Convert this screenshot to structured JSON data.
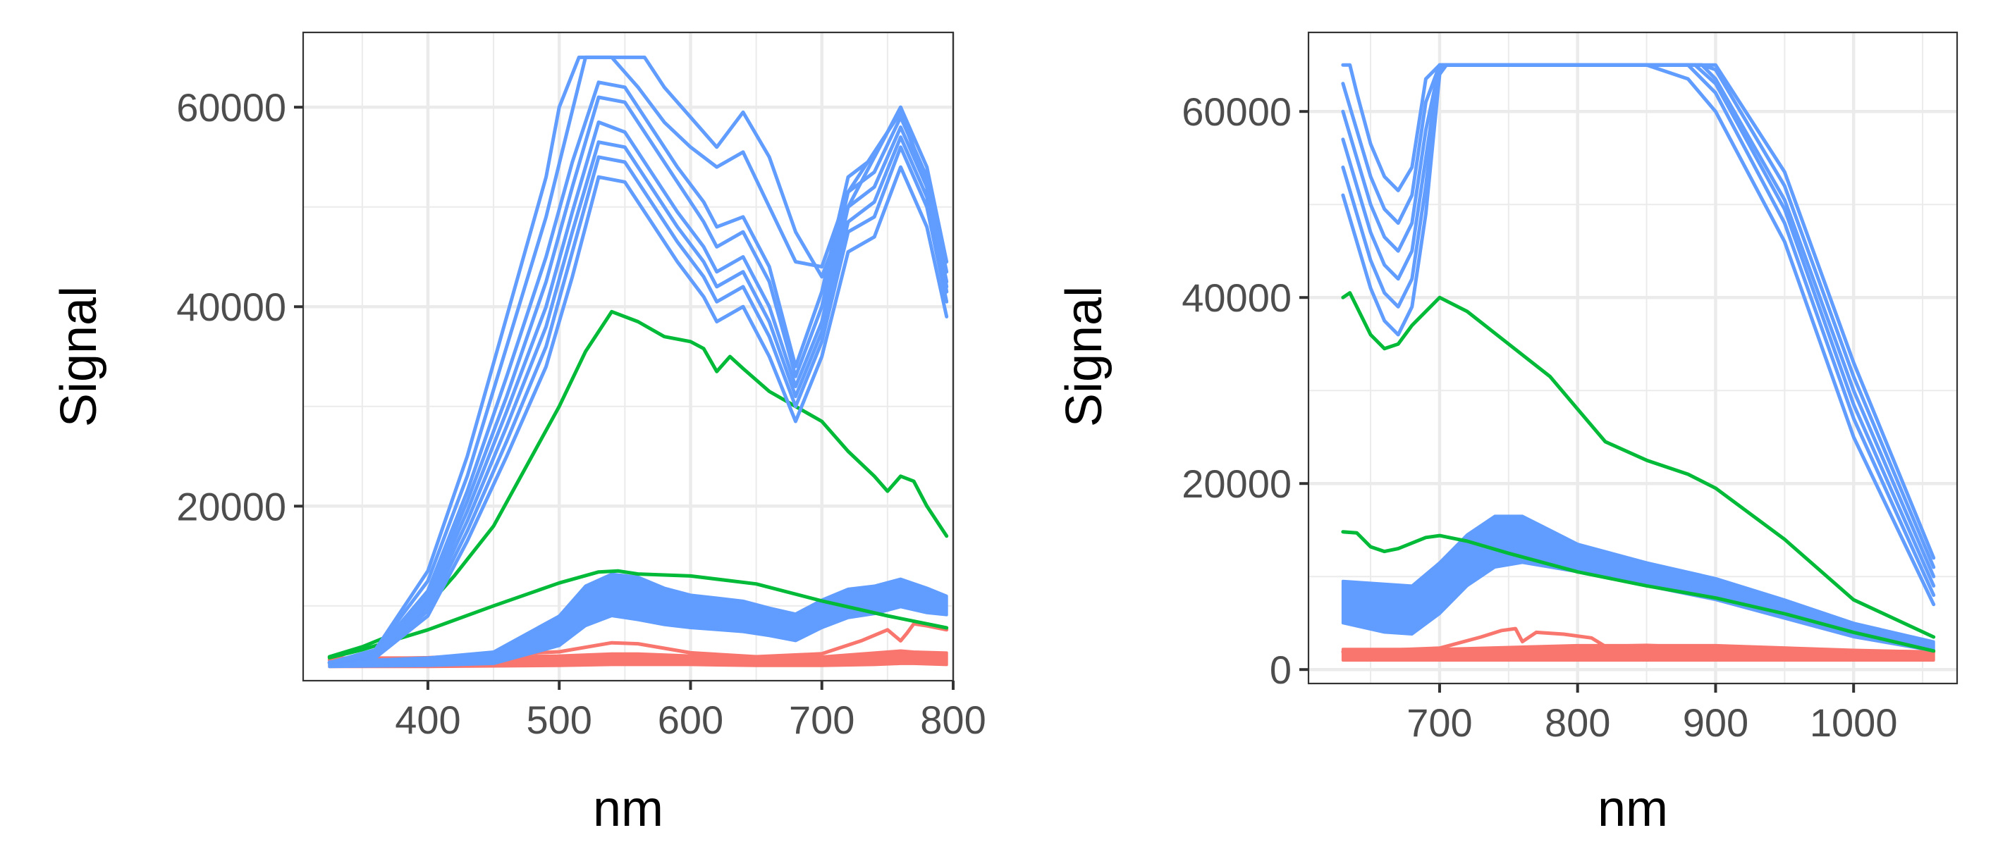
{
  "colors": {
    "red": "#F8766D",
    "green": "#00BA38",
    "blue": "#619CFF",
    "grid": "#EBEBEB",
    "panel_border": "#333333",
    "tick_text": "#4D4D4D"
  },
  "chart_data": [
    {
      "type": "line",
      "xlabel": "nm",
      "ylabel": "Signal",
      "xlim": [
        305,
        800
      ],
      "ylim": [
        2500,
        67500
      ],
      "xticks": [
        400,
        500,
        600,
        700,
        800
      ],
      "yticks": [
        20000,
        40000,
        60000
      ],
      "grid": true,
      "legend": "none",
      "series": [
        {
          "color": "#F8766D",
          "kind": "band",
          "x": [
            325,
            400,
            500,
            540,
            560,
            600,
            650,
            700,
            740,
            760,
            770,
            795
          ],
          "lower": [
            3900,
            3900,
            4000,
            4100,
            4100,
            4100,
            4000,
            4000,
            4100,
            4200,
            4200,
            4100
          ],
          "upper": [
            4800,
            4800,
            5000,
            5200,
            5200,
            5000,
            4900,
            4900,
            5300,
            5500,
            5400,
            5300
          ]
        },
        {
          "color": "#F8766D",
          "x": [
            325,
            400,
            500,
            540,
            560,
            600,
            650,
            700,
            730,
            750,
            760,
            765,
            770,
            780,
            795
          ],
          "y": [
            4600,
            4800,
            5400,
            6300,
            6200,
            5300,
            4900,
            5200,
            6500,
            7600,
            6500,
            7300,
            8200,
            8000,
            7600
          ]
        },
        {
          "color": "#619CFF",
          "kind": "band",
          "x": [
            325,
            400,
            450,
            500,
            520,
            540,
            560,
            580,
            600,
            620,
            640,
            660,
            680,
            700,
            720,
            740,
            760,
            780,
            795
          ],
          "lower": [
            3900,
            4000,
            4200,
            6000,
            8000,
            9000,
            8600,
            8100,
            7800,
            7600,
            7400,
            7000,
            6500,
            7800,
            8800,
            9200,
            9900,
            9300,
            9100
          ],
          "upper": [
            4400,
            4800,
            5400,
            9000,
            12000,
            13200,
            12900,
            11800,
            11100,
            10800,
            10500,
            9800,
            9200,
            10600,
            11700,
            12000,
            12700,
            11800,
            11000
          ]
        },
        {
          "color": "#00BA38",
          "x": [
            325,
            350,
            400,
            450,
            500,
            530,
            545,
            560,
            600,
            650,
            700,
            750,
            795
          ],
          "y": [
            4800,
            5600,
            7600,
            10000,
            12300,
            13400,
            13500,
            13200,
            13000,
            12200,
            10500,
            9000,
            7800
          ]
        },
        {
          "color": "#00BA38",
          "x": [
            325,
            350,
            380,
            400,
            420,
            450,
            500,
            520,
            540,
            560,
            580,
            600,
            610,
            620,
            630,
            640,
            660,
            680,
            700,
            720,
            740,
            750,
            760,
            770,
            780,
            795
          ],
          "y": [
            4900,
            5900,
            7500,
            10000,
            13000,
            18000,
            30000,
            35500,
            39500,
            38500,
            37000,
            36500,
            35800,
            33500,
            35000,
            33800,
            31500,
            30000,
            28500,
            25500,
            23000,
            21500,
            23000,
            22500,
            20000,
            17000
          ]
        },
        {
          "color": "#619CFF",
          "x": [
            325,
            360,
            400,
            430,
            460,
            490,
            510,
            530,
            550,
            570,
            590,
            610,
            620,
            640,
            660,
            680,
            700,
            720,
            740,
            760,
            780,
            795
          ],
          "y": [
            4300,
            4800,
            9000,
            16500,
            25000,
            34000,
            43000,
            53000,
            52500,
            48500,
            44500,
            41000,
            38500,
            40000,
            35000,
            28500,
            35000,
            45500,
            47000,
            54000,
            48000,
            39000
          ]
        },
        {
          "color": "#619CFF",
          "x": [
            325,
            360,
            400,
            430,
            460,
            490,
            510,
            530,
            550,
            570,
            590,
            610,
            620,
            640,
            660,
            680,
            700,
            720,
            740,
            760,
            780,
            795
          ],
          "y": [
            4300,
            4900,
            9500,
            17500,
            26500,
            36000,
            45500,
            55000,
            54500,
            50500,
            46500,
            43000,
            40500,
            42000,
            37000,
            30000,
            36500,
            47500,
            49000,
            56000,
            50000,
            40500
          ]
        },
        {
          "color": "#619CFF",
          "x": [
            325,
            360,
            400,
            430,
            460,
            490,
            510,
            530,
            550,
            570,
            590,
            610,
            620,
            640,
            660,
            680,
            700,
            720,
            740,
            760,
            780,
            795
          ],
          "y": [
            4300,
            5000,
            10000,
            18500,
            28000,
            38000,
            47500,
            56500,
            56000,
            52000,
            48000,
            44500,
            42000,
            43500,
            38500,
            31000,
            37500,
            48500,
            50500,
            57000,
            51000,
            41500
          ]
        },
        {
          "color": "#619CFF",
          "x": [
            325,
            360,
            400,
            430,
            460,
            490,
            510,
            530,
            550,
            570,
            590,
            610,
            620,
            640,
            660,
            680,
            700,
            720,
            740,
            760,
            780,
            795
          ],
          "y": [
            4300,
            5100,
            10500,
            19500,
            29500,
            40000,
            49500,
            58500,
            57500,
            53500,
            49500,
            46000,
            43500,
            45000,
            40000,
            32000,
            38500,
            50000,
            52000,
            58000,
            52000,
            42500
          ]
        },
        {
          "color": "#619CFF",
          "x": [
            325,
            360,
            400,
            430,
            460,
            490,
            510,
            530,
            550,
            570,
            590,
            610,
            620,
            640,
            660,
            680,
            700,
            720,
            740,
            760,
            780,
            795
          ],
          "y": [
            4300,
            5200,
            11000,
            20500,
            31000,
            42500,
            52000,
            61000,
            60500,
            56500,
            52500,
            48500,
            46000,
            47500,
            42500,
            33000,
            40000,
            51500,
            53500,
            59000,
            53000,
            43500
          ]
        },
        {
          "color": "#619CFF",
          "x": [
            325,
            360,
            400,
            430,
            460,
            490,
            510,
            530,
            550,
            570,
            590,
            610,
            620,
            640,
            660,
            680,
            700,
            720,
            740,
            760,
            780,
            795
          ],
          "y": [
            4300,
            5300,
            11500,
            21500,
            33000,
            45000,
            54500,
            62500,
            62000,
            58000,
            54000,
            50500,
            48000,
            49000,
            44000,
            34000,
            41500,
            53000,
            55000,
            60000,
            54000,
            44500
          ]
        },
        {
          "color": "#619CFF",
          "x": [
            325,
            360,
            400,
            430,
            460,
            490,
            505,
            520,
            540,
            560,
            580,
            600,
            620,
            640,
            660,
            680,
            700,
            720,
            740,
            760,
            780,
            795
          ],
          "y": [
            4300,
            5500,
            12500,
            23000,
            36000,
            49000,
            57000,
            65000,
            65000,
            62000,
            58500,
            56000,
            54000,
            55500,
            50000,
            44500,
            44000,
            51500,
            55500,
            59500,
            52000,
            41500
          ]
        },
        {
          "color": "#619CFF",
          "x": [
            325,
            360,
            400,
            430,
            460,
            490,
            500,
            515,
            545,
            565,
            580,
            600,
            620,
            640,
            660,
            680,
            700,
            720,
            740,
            760,
            780,
            795
          ],
          "y": [
            4300,
            5600,
            13500,
            25000,
            39000,
            53000,
            60000,
            65000,
            65000,
            65000,
            62000,
            59000,
            56000,
            59500,
            55000,
            47500,
            43000,
            50000,
            55000,
            60000,
            52000,
            42000
          ]
        }
      ]
    },
    {
      "type": "line",
      "xlabel": "nm",
      "ylabel": "Signal",
      "xlim": [
        605,
        1075
      ],
      "ylim": [
        -1500,
        68500
      ],
      "xticks": [
        700,
        800,
        900,
        1000
      ],
      "yticks": [
        0,
        20000,
        40000,
        60000
      ],
      "grid": true,
      "legend": "none",
      "series": [
        {
          "color": "#F8766D",
          "kind": "band",
          "x": [
            630,
            700,
            800,
            900,
            1000,
            1058
          ],
          "lower": [
            1000,
            1000,
            1000,
            1000,
            1000,
            1000
          ],
          "upper": [
            2200,
            2200,
            2600,
            2600,
            2100,
            1900
          ]
        },
        {
          "color": "#F8766D",
          "x": [
            630,
            700,
            730,
            745,
            755,
            760,
            770,
            790,
            810,
            820,
            850,
            900,
            1000,
            1058
          ],
          "y": [
            1900,
            2300,
            3500,
            4200,
            4400,
            3000,
            4000,
            3800,
            3400,
            2500,
            2600,
            2300,
            2000,
            1900
          ]
        },
        {
          "color": "#619CFF",
          "kind": "band",
          "x": [
            630,
            660,
            680,
            700,
            720,
            740,
            760,
            780,
            800,
            850,
            900,
            950,
            1000,
            1058
          ],
          "lower": [
            5000,
            4000,
            3800,
            6000,
            9000,
            11000,
            11500,
            11000,
            10500,
            9000,
            7500,
            5500,
            3500,
            2000
          ],
          "upper": [
            9500,
            9200,
            9000,
            11500,
            14500,
            16500,
            16500,
            15000,
            13500,
            11500,
            9800,
            7500,
            5000,
            3000
          ]
        },
        {
          "color": "#00BA38",
          "x": [
            630,
            635,
            640,
            650,
            660,
            670,
            680,
            700,
            720,
            750,
            780,
            800,
            820,
            850,
            880,
            900,
            950,
            1000,
            1058
          ],
          "y": [
            40000,
            40500,
            39000,
            36000,
            34500,
            35000,
            37000,
            40000,
            38500,
            35000,
            31500,
            28000,
            24500,
            22500,
            21000,
            19500,
            14000,
            7500,
            3500
          ]
        },
        {
          "color": "#00BA38",
          "x": [
            630,
            640,
            650,
            660,
            670,
            690,
            700,
            720,
            750,
            800,
            850,
            900,
            950,
            1000,
            1058
          ],
          "y": [
            14800,
            14700,
            13200,
            12700,
            13000,
            14200,
            14400,
            13800,
            12500,
            10500,
            9000,
            7700,
            6000,
            4000,
            2000
          ]
        },
        {
          "color": "#619CFF",
          "x": [
            630,
            640,
            650,
            660,
            670,
            680,
            690,
            700,
            705,
            850,
            880,
            900,
            950,
            1000,
            1058
          ],
          "y": [
            51000,
            46000,
            41000,
            37500,
            36000,
            39000,
            49000,
            64000,
            65000,
            65000,
            63500,
            60000,
            46000,
            25000,
            7000
          ]
        },
        {
          "color": "#619CFF",
          "x": [
            630,
            640,
            650,
            660,
            670,
            680,
            690,
            700,
            705,
            880,
            900,
            950,
            1000,
            1058
          ],
          "y": [
            54000,
            49000,
            44000,
            40500,
            39000,
            42000,
            52000,
            64500,
            65000,
            65000,
            62000,
            48000,
            27000,
            8000
          ]
        },
        {
          "color": "#619CFF",
          "x": [
            630,
            640,
            650,
            660,
            670,
            680,
            690,
            700,
            705,
            885,
            900,
            950,
            1000,
            1058
          ],
          "y": [
            57000,
            52000,
            47000,
            43500,
            42000,
            45000,
            55000,
            65000,
            65000,
            65000,
            63000,
            49500,
            28500,
            9000
          ]
        },
        {
          "color": "#619CFF",
          "x": [
            630,
            640,
            650,
            660,
            670,
            680,
            690,
            700,
            890,
            900,
            950,
            1000,
            1058
          ],
          "y": [
            60000,
            55000,
            50000,
            46500,
            45000,
            48000,
            58000,
            65000,
            65000,
            63500,
            50500,
            30000,
            10000
          ]
        },
        {
          "color": "#619CFF",
          "x": [
            630,
            640,
            650,
            660,
            670,
            680,
            690,
            700,
            890,
            900,
            950,
            1000,
            1058
          ],
          "y": [
            63000,
            58000,
            53000,
            49500,
            48000,
            51000,
            61000,
            65000,
            65000,
            64500,
            52000,
            31500,
            11000
          ]
        },
        {
          "color": "#619CFF",
          "x": [
            630,
            635,
            640,
            650,
            660,
            670,
            680,
            690,
            700,
            895,
            900,
            950,
            1000,
            1058
          ],
          "y": [
            65000,
            65000,
            62000,
            56500,
            53000,
            51500,
            54000,
            63500,
            65000,
            65000,
            65000,
            53500,
            33000,
            12000
          ]
        }
      ]
    }
  ]
}
